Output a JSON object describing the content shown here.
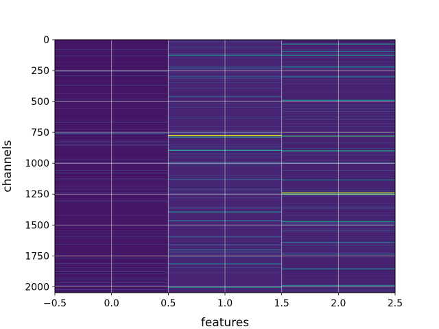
{
  "chart_data": {
    "type": "heatmap",
    "title": "",
    "xlabel": "features",
    "ylabel": "channels",
    "xlim": [
      -0.5,
      2.5
    ],
    "ylim": [
      2048,
      0
    ],
    "y_inverted": true,
    "xticks": [
      -0.5,
      0.0,
      0.5,
      1.0,
      1.5,
      2.0,
      2.5
    ],
    "xtick_labels": [
      "−0.5",
      "0.0",
      "0.5",
      "1.0",
      "1.5",
      "2.0",
      "2.5"
    ],
    "yticks": [
      0,
      250,
      500,
      750,
      1000,
      1250,
      1500,
      1750,
      2000
    ],
    "ytick_labels": [
      "0",
      "250",
      "500",
      "750",
      "1000",
      "1250",
      "1500",
      "1750",
      "2000"
    ],
    "grid": true,
    "colormap": "viridis",
    "n_rows": 2048,
    "columns": [
      {
        "feature": 0,
        "base_value": 0.06,
        "bright_lines": [
          {
            "channel": 760,
            "value": 0.28
          }
        ]
      },
      {
        "feature": 1,
        "base_value": 0.11,
        "bright_lines": [
          {
            "channel": 125,
            "value": 0.5
          },
          {
            "channel": 230,
            "value": 0.3
          },
          {
            "channel": 300,
            "value": 0.28
          },
          {
            "channel": 460,
            "value": 0.3
          },
          {
            "channel": 775,
            "value": 0.95
          },
          {
            "channel": 790,
            "value": 0.4
          },
          {
            "channel": 895,
            "value": 0.55
          },
          {
            "channel": 995,
            "value": 0.3
          },
          {
            "channel": 1130,
            "value": 0.3
          },
          {
            "channel": 1395,
            "value": 0.45
          },
          {
            "channel": 1465,
            "value": 0.35
          },
          {
            "channel": 1595,
            "value": 0.3
          },
          {
            "channel": 1700,
            "value": 0.3
          },
          {
            "channel": 1815,
            "value": 0.35
          },
          {
            "channel": 2005,
            "value": 0.45
          }
        ]
      },
      {
        "feature": 2,
        "base_value": 0.1,
        "bright_lines": [
          {
            "channel": 35,
            "value": 0.45
          },
          {
            "channel": 95,
            "value": 0.4
          },
          {
            "channel": 125,
            "value": 0.5
          },
          {
            "channel": 220,
            "value": 0.45
          },
          {
            "channel": 300,
            "value": 0.4
          },
          {
            "channel": 490,
            "value": 0.45
          },
          {
            "channel": 780,
            "value": 0.7
          },
          {
            "channel": 900,
            "value": 0.55
          },
          {
            "channel": 1000,
            "value": 0.3
          },
          {
            "channel": 1135,
            "value": 0.35
          },
          {
            "channel": 1240,
            "value": 0.9
          },
          {
            "channel": 1252,
            "value": 0.65
          },
          {
            "channel": 1470,
            "value": 0.55
          },
          {
            "channel": 1500,
            "value": 0.3
          },
          {
            "channel": 1640,
            "value": 0.35
          },
          {
            "channel": 1735,
            "value": 0.3
          },
          {
            "channel": 1855,
            "value": 0.4
          },
          {
            "channel": 1990,
            "value": 0.45
          }
        ]
      }
    ]
  }
}
